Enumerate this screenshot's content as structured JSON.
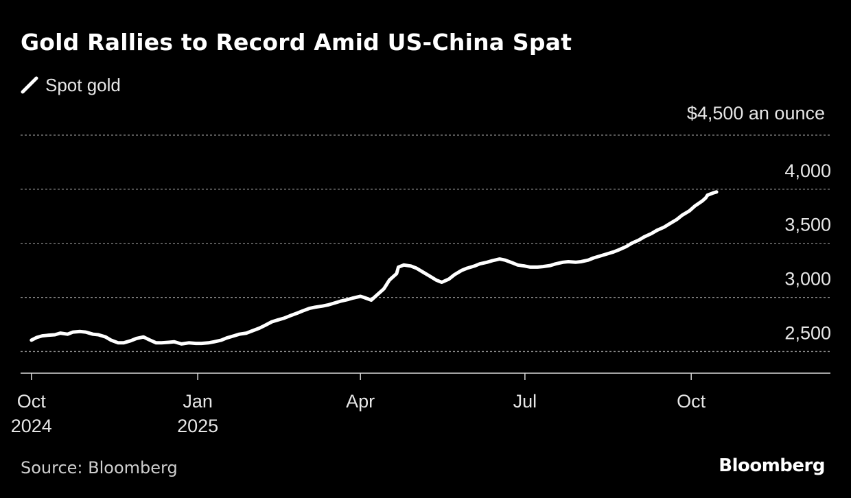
{
  "title": "Gold Rallies to Record Amid US-China Spat",
  "legend": {
    "label": "Spot gold",
    "color": "#ffffff"
  },
  "unit_label": "$4,500 an ounce",
  "source": "Source: Bloomberg",
  "brand": "Bloomberg",
  "chart_data": {
    "type": "line",
    "title": "Gold Rallies to Record Amid US-China Spat",
    "xlabel": "",
    "ylabel": "",
    "ylim": [
      2300,
      4500
    ],
    "xlim": [
      "2024-09-25",
      "2025-12-17"
    ],
    "grid": true,
    "legend_position": "top-left",
    "y_ticks": [
      {
        "value": 4500,
        "label": "4,500"
      },
      {
        "value": 4000,
        "label": "4,000"
      },
      {
        "value": 3500,
        "label": "3,500"
      },
      {
        "value": 3000,
        "label": "3,000"
      },
      {
        "value": 2500,
        "label": "2,500"
      }
    ],
    "x_ticks": [
      {
        "date": "2024-10-01",
        "label": "Oct",
        "sublabel": "2024"
      },
      {
        "date": "2025-01-01",
        "label": "Jan",
        "sublabel": "2025"
      },
      {
        "date": "2025-04-01",
        "label": "Apr",
        "sublabel": ""
      },
      {
        "date": "2025-07-01",
        "label": "Jul",
        "sublabel": ""
      },
      {
        "date": "2025-10-01",
        "label": "Oct",
        "sublabel": ""
      }
    ],
    "series": [
      {
        "name": "Spot gold",
        "color": "#ffffff",
        "points": [
          [
            "2024-10-01",
            2605
          ],
          [
            "2024-10-04",
            2630
          ],
          [
            "2024-10-07",
            2645
          ],
          [
            "2024-10-10",
            2650
          ],
          [
            "2024-10-14",
            2655
          ],
          [
            "2024-10-17",
            2670
          ],
          [
            "2024-10-21",
            2660
          ],
          [
            "2024-10-24",
            2680
          ],
          [
            "2024-10-28",
            2685
          ],
          [
            "2024-10-31",
            2680
          ],
          [
            "2024-11-04",
            2660
          ],
          [
            "2024-11-07",
            2655
          ],
          [
            "2024-11-11",
            2635
          ],
          [
            "2024-11-14",
            2605
          ],
          [
            "2024-11-18",
            2580
          ],
          [
            "2024-11-21",
            2580
          ],
          [
            "2024-11-25",
            2600
          ],
          [
            "2024-11-28",
            2620
          ],
          [
            "2024-12-02",
            2635
          ],
          [
            "2024-12-05",
            2610
          ],
          [
            "2024-12-09",
            2580
          ],
          [
            "2024-12-12",
            2580
          ],
          [
            "2024-12-16",
            2585
          ],
          [
            "2024-12-19",
            2590
          ],
          [
            "2024-12-23",
            2570
          ],
          [
            "2024-12-27",
            2580
          ],
          [
            "2024-12-31",
            2575
          ],
          [
            "2025-01-03",
            2575
          ],
          [
            "2025-01-07",
            2580
          ],
          [
            "2025-01-10",
            2590
          ],
          [
            "2025-01-14",
            2605
          ],
          [
            "2025-01-17",
            2625
          ],
          [
            "2025-01-21",
            2645
          ],
          [
            "2025-01-24",
            2660
          ],
          [
            "2025-01-28",
            2670
          ],
          [
            "2025-01-31",
            2690
          ],
          [
            "2025-02-04",
            2715
          ],
          [
            "2025-02-07",
            2740
          ],
          [
            "2025-02-11",
            2775
          ],
          [
            "2025-02-14",
            2790
          ],
          [
            "2025-02-18",
            2810
          ],
          [
            "2025-02-21",
            2830
          ],
          [
            "2025-02-25",
            2855
          ],
          [
            "2025-02-28",
            2875
          ],
          [
            "2025-03-04",
            2900
          ],
          [
            "2025-03-07",
            2910
          ],
          [
            "2025-03-11",
            2920
          ],
          [
            "2025-03-14",
            2930
          ],
          [
            "2025-03-18",
            2950
          ],
          [
            "2025-03-21",
            2965
          ],
          [
            "2025-03-25",
            2980
          ],
          [
            "2025-03-28",
            2995
          ],
          [
            "2025-04-01",
            3010
          ],
          [
            "2025-04-03",
            3000
          ],
          [
            "2025-04-07",
            2975
          ],
          [
            "2025-04-10",
            3020
          ],
          [
            "2025-04-14",
            3080
          ],
          [
            "2025-04-17",
            3160
          ],
          [
            "2025-04-21",
            3220
          ],
          [
            "2025-04-22",
            3280
          ],
          [
            "2025-04-25",
            3300
          ],
          [
            "2025-04-29",
            3290
          ],
          [
            "2025-05-02",
            3270
          ],
          [
            "2025-05-06",
            3230
          ],
          [
            "2025-05-09",
            3200
          ],
          [
            "2025-05-13",
            3160
          ],
          [
            "2025-05-16",
            3140
          ],
          [
            "2025-05-20",
            3170
          ],
          [
            "2025-05-23",
            3210
          ],
          [
            "2025-05-27",
            3250
          ],
          [
            "2025-05-30",
            3270
          ],
          [
            "2025-06-03",
            3290
          ],
          [
            "2025-06-06",
            3310
          ],
          [
            "2025-06-10",
            3325
          ],
          [
            "2025-06-13",
            3340
          ],
          [
            "2025-06-17",
            3355
          ],
          [
            "2025-06-20",
            3345
          ],
          [
            "2025-06-24",
            3320
          ],
          [
            "2025-06-27",
            3300
          ],
          [
            "2025-07-01",
            3290
          ],
          [
            "2025-07-04",
            3280
          ],
          [
            "2025-07-08",
            3280
          ],
          [
            "2025-07-11",
            3285
          ],
          [
            "2025-07-15",
            3295
          ],
          [
            "2025-07-18",
            3310
          ],
          [
            "2025-07-22",
            3325
          ],
          [
            "2025-07-25",
            3330
          ],
          [
            "2025-07-29",
            3325
          ],
          [
            "2025-08-01",
            3330
          ],
          [
            "2025-08-05",
            3345
          ],
          [
            "2025-08-08",
            3365
          ],
          [
            "2025-08-12",
            3385
          ],
          [
            "2025-08-15",
            3400
          ],
          [
            "2025-08-19",
            3420
          ],
          [
            "2025-08-22",
            3440
          ],
          [
            "2025-08-26",
            3470
          ],
          [
            "2025-08-29",
            3500
          ],
          [
            "2025-09-02",
            3530
          ],
          [
            "2025-09-05",
            3560
          ],
          [
            "2025-09-09",
            3590
          ],
          [
            "2025-09-12",
            3620
          ],
          [
            "2025-09-16",
            3650
          ],
          [
            "2025-09-19",
            3680
          ],
          [
            "2025-09-23",
            3720
          ],
          [
            "2025-09-26",
            3760
          ],
          [
            "2025-09-30",
            3800
          ],
          [
            "2025-10-03",
            3845
          ],
          [
            "2025-10-07",
            3890
          ],
          [
            "2025-10-09",
            3920
          ],
          [
            "2025-10-10",
            3945
          ],
          [
            "2025-10-13",
            3965
          ],
          [
            "2025-10-15",
            3975
          ]
        ]
      }
    ]
  }
}
